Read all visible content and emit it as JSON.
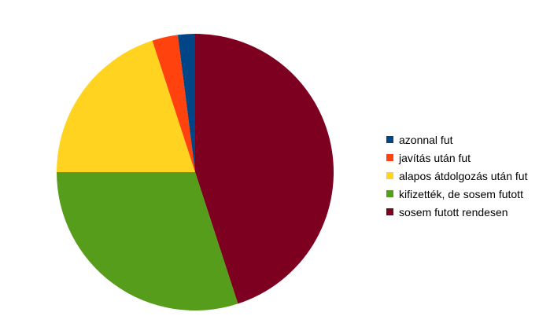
{
  "chart_data": {
    "type": "pie",
    "title": "",
    "legend_position": "right",
    "categories": [
      "azonnal fut",
      "javítás után fut",
      "alapos átdolgozás után fut",
      "kifizették, de sosem futott",
      "sosem futott rendesen"
    ],
    "values": [
      2,
      3,
      20,
      30,
      45
    ],
    "colors": [
      "#004586",
      "#ff420e",
      "#ffd320",
      "#579d1c",
      "#7e0021"
    ],
    "start_angle_deg": 0,
    "direction": "counterclockwise-from-top"
  }
}
